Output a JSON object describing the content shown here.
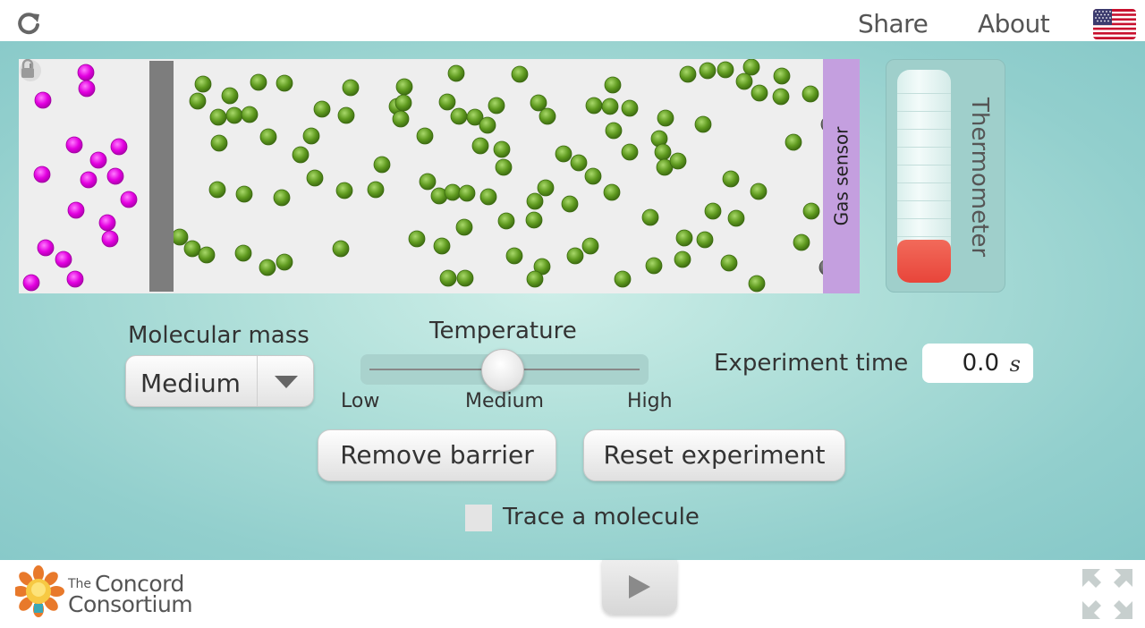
{
  "header": {
    "share_label": "Share",
    "about_label": "About"
  },
  "simulation": {
    "gas_sensor_label": "Gas sensor",
    "thermometer_label": "Thermometer",
    "thermometer_level": 0.2
  },
  "controls": {
    "molecular_mass": {
      "label": "Molecular mass",
      "selected": "Medium"
    },
    "temperature": {
      "label": "Temperature",
      "tick_labels": [
        "Low",
        "Medium",
        "High"
      ],
      "value": "Medium"
    },
    "experiment_time": {
      "label": "Experiment time",
      "value": "0.0",
      "unit": "s"
    },
    "remove_barrier_label": "Remove barrier",
    "reset_experiment_label": "Reset experiment",
    "trace_molecule_label": "Trace a molecule",
    "trace_molecule_checked": false
  },
  "footer": {
    "logo_the": "The",
    "logo_concord": "Concord",
    "logo_consortium": "Consortium"
  },
  "colors": {
    "magenta_molecule": "#e300e0",
    "green_molecule": "#5f9a1f",
    "sensor": "#c49fdf",
    "thermometer_fill": "#e8453a"
  },
  "icons": [
    "reload-icon",
    "us-flag-icon",
    "pin-icon",
    "lock-icon",
    "dropdown-arrow-icon",
    "play-icon",
    "fullscreen-icon",
    "concord-logo-icon"
  ]
}
